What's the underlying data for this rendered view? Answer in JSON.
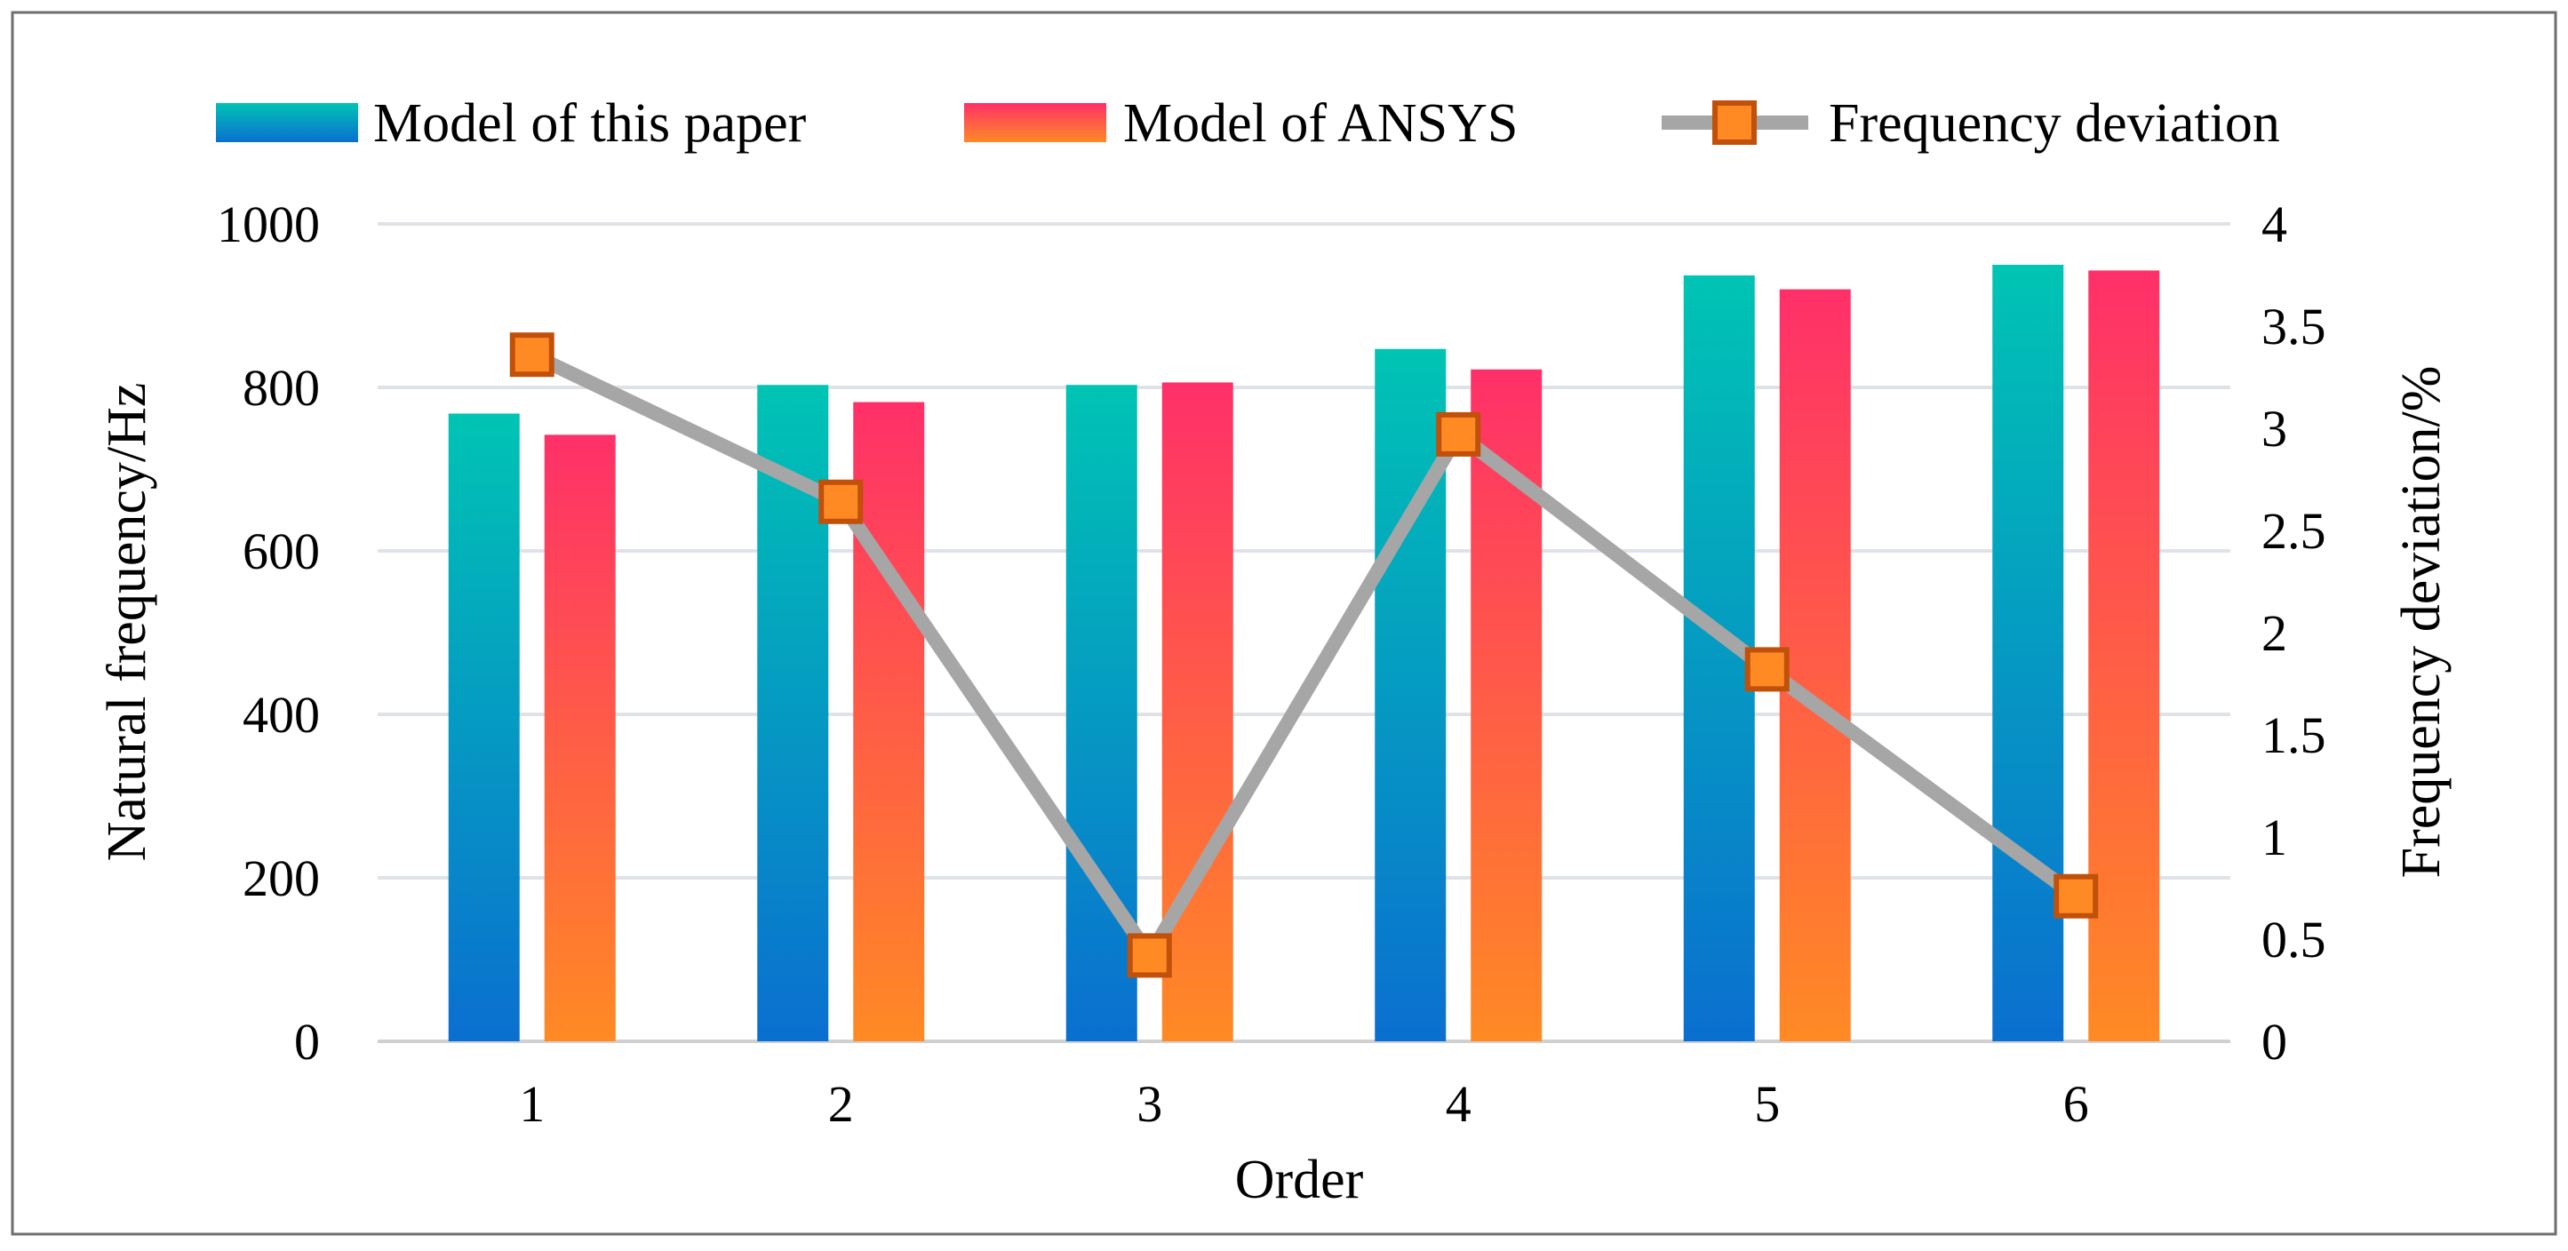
{
  "chart_data": {
    "type": "bar",
    "categories": [
      "1",
      "2",
      "3",
      "4",
      "5",
      "6"
    ],
    "xlabel": "Order",
    "ylabel": "Natural frequency/Hz",
    "y2label": "Frequency deviation/%",
    "ylim": [
      0,
      1000
    ],
    "y2lim": [
      0,
      4
    ],
    "yticks": [
      "0",
      "200",
      "400",
      "600",
      "800",
      "1000"
    ],
    "y2ticks": [
      "0",
      "0.5",
      "1",
      "1.5",
      "2",
      "2.5",
      "3",
      "3.5",
      "4"
    ],
    "grid": true,
    "legend_position": "top",
    "series": [
      {
        "name": "Model of this paper",
        "type": "bar",
        "axis": "left",
        "values": [
          768,
          803,
          803,
          847,
          937,
          950
        ],
        "colors": [
          "#00c4b4",
          "#0a6fd0"
        ]
      },
      {
        "name": "Model of ANSYS",
        "type": "bar",
        "axis": "left",
        "values": [
          742,
          782,
          806,
          822,
          920,
          943
        ],
        "colors": [
          "#ff3069",
          "#ff8a24"
        ]
      },
      {
        "name": "Frequency deviation",
        "type": "line",
        "axis": "right",
        "values": [
          3.36,
          2.64,
          0.42,
          2.97,
          1.82,
          0.71
        ],
        "line_color": "#a6a6a6",
        "marker_fill": "#ff8a24",
        "marker_stroke": "#c0500a"
      }
    ]
  }
}
